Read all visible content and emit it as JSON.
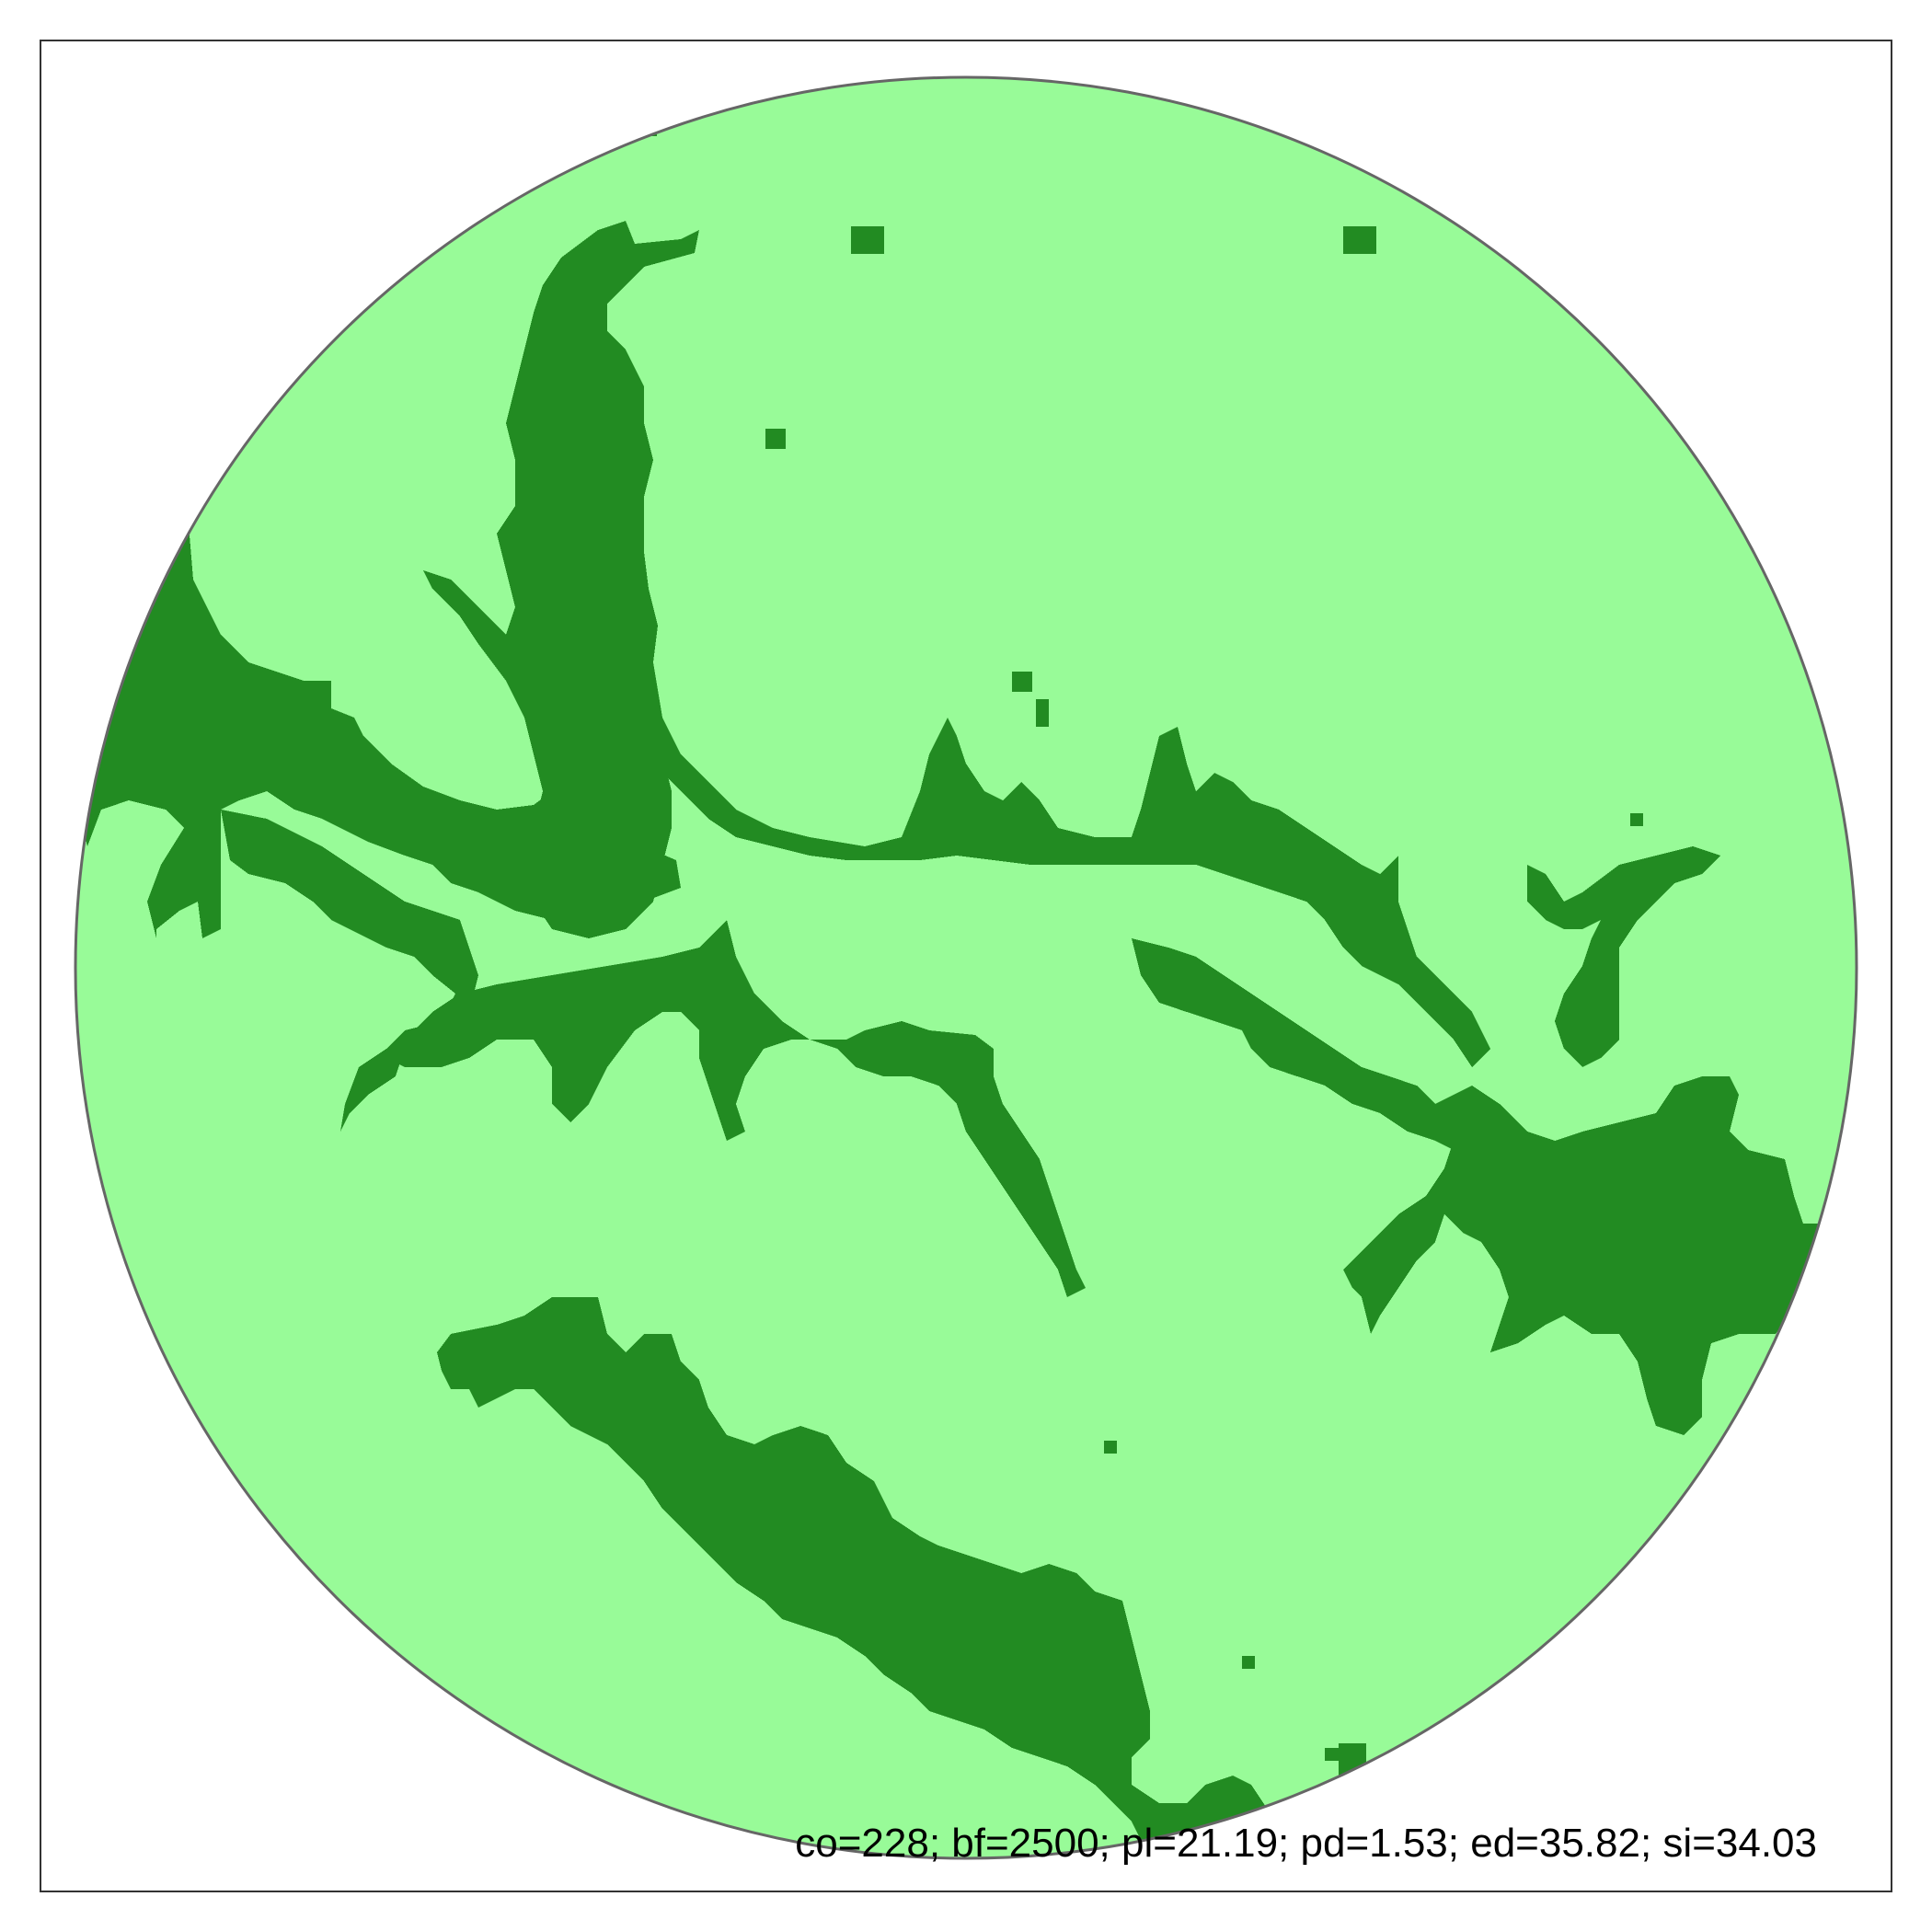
{
  "figure": {
    "caption": "co=228; bf=2500; pl=21.19; pd=1.53; ed=35.82; si=34.03",
    "colors": {
      "background": "#ffffff",
      "frame": "#333333",
      "circle_outline": "#666666",
      "open_land": "#98fb98",
      "forest_patch": "#228b22"
    },
    "elements": [
      "circular-study-area",
      "forest-patches",
      "open-land",
      "metrics-caption"
    ]
  }
}
